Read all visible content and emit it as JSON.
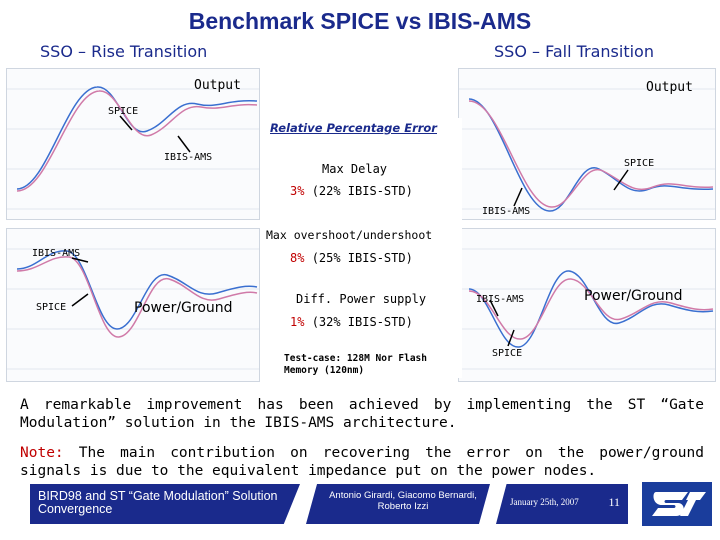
{
  "header": {
    "title": "Benchmark SPICE vs IBIS-AMS",
    "sub_left": "SSO – Rise Transition",
    "sub_right": "SSO – Fall Transition"
  },
  "plots": {
    "top_left": {
      "label_output": "Output",
      "label_spice": "SPICE",
      "label_ibis": "IBIS-AMS"
    },
    "top_right": {
      "label_output": "Output",
      "label_spice": "SPICE",
      "label_ibis": "IBIS-AMS"
    },
    "bottom_left": {
      "label_ibis": "IBIS-AMS",
      "label_spice": "SPICE",
      "label_pg": "Power/Ground"
    },
    "bottom_right": {
      "label_ibis": "IBIS-AMS",
      "label_spice": "SPICE",
      "label_pg": "Power/Ground"
    }
  },
  "center": {
    "heading": "Relative Percentage Error",
    "max_delay_label": "Max Delay",
    "max_delay_pct": "3%",
    "max_delay_ref": "(22% IBIS-STD)",
    "overshoot_label": "Max overshoot/undershoot",
    "overshoot_pct": "8%",
    "overshoot_ref": "(25% IBIS-STD)",
    "diff_label": "Diff. Power supply",
    "diff_pct": "1%",
    "diff_ref": "(32% IBIS-STD)",
    "testcase": "Test-case: 128M Nor Flash Memory (120nm)"
  },
  "body": {
    "para1": "A remarkable improvement has been achieved by implementing the ST “Gate Modulation” solution in the IBIS-AMS architecture.",
    "note_label": "Note:",
    "note_text": " The main contribution on recovering the error on the power/ground signals is due to the equivalent impedance put on the power nodes."
  },
  "footer": {
    "title": "BIRD98 and ST “Gate Modulation” Solution Convergence",
    "authors": "Antonio Girardi, Giacomo Bernardi, Roberto Izzi",
    "date": "January 25th, 2007",
    "page": "11"
  },
  "colors": {
    "title": "#1a2a8c",
    "bar": "#1a2a8c",
    "red": "#c00000",
    "curve_pink": "#d07aa8",
    "curve_blue": "#3a6fd0"
  }
}
